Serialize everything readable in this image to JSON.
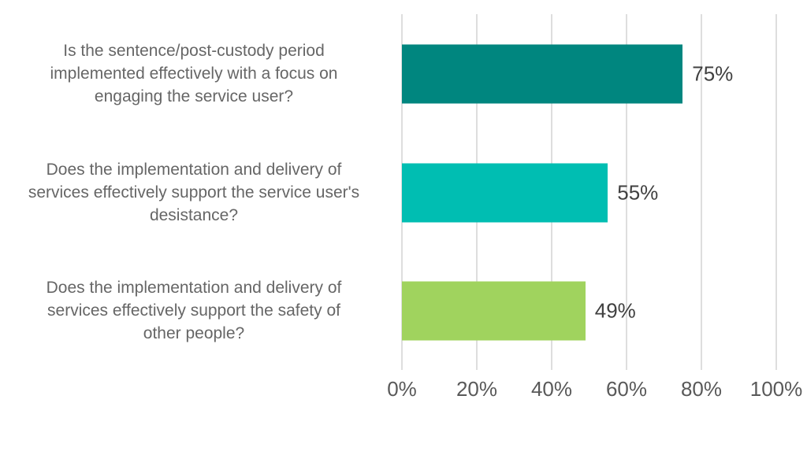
{
  "chart_data": {
    "type": "bar",
    "orientation": "horizontal",
    "title": "",
    "xlabel": "",
    "ylabel": "",
    "categories": [
      "Is the sentence/post-custody period\nimplemented effectively with a focus on\nengaging the service user?",
      "Does the implementation and delivery of\nservices effectively support the service user's\ndesistance?",
      "Does the implementation and delivery of\nservices effectively support the safety of\nother people?"
    ],
    "values": [
      75,
      55,
      49
    ],
    "value_labels": [
      "75%",
      "55%",
      "49%"
    ],
    "bar_colors": [
      "#00867F",
      "#00BEB2",
      "#A0D35E"
    ],
    "x_ticks": [
      "0%",
      "20%",
      "40%",
      "60%",
      "80%",
      "100%"
    ],
    "xlim": [
      0,
      100
    ],
    "grid": "vertical",
    "legend": "none"
  },
  "colors": {
    "background": "#FFFFFF",
    "gridline": "#DEDEDE",
    "category_text": "#666666",
    "value_text": "#404040",
    "axis_text": "#595959"
  }
}
